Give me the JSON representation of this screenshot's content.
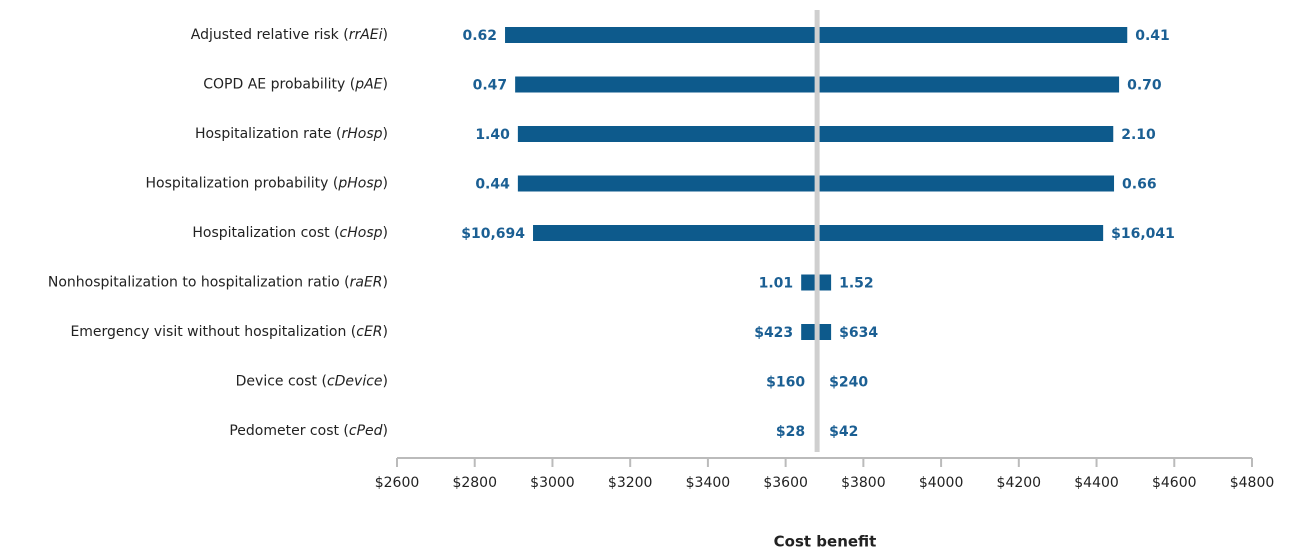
{
  "chart_data": {
    "type": "tornado",
    "x_label": "Cost benefit",
    "categories": [
      "Adjusted relative risk (rrAEi)",
      "COPD AE probability (pAE)",
      "Hospitalization rate (rHosp)",
      "Hospitalization probability (pHosp)",
      "Hospitalization cost (cHosp)",
      "Nonhospitalization to hospitalization ratio (raER)",
      "Emergency visit without hospitalization (cER)",
      "Device cost (cDevice)",
      "Pedometer cost (cPed)"
    ],
    "baseline": 3681,
    "low_values": [
      2878,
      2904,
      2911,
      2911,
      2950,
      3640,
      3640,
      3676,
      3679
    ],
    "high_values": [
      4479,
      4458,
      4443,
      4445,
      4417,
      3717,
      3717,
      3686,
      3683
    ],
    "low_texts": [
      "0.62",
      "0.47",
      "1.40",
      "0.44",
      "$10,694",
      "1.01",
      "$423",
      "$160",
      "$28"
    ],
    "high_texts": [
      "0.41",
      "0.70",
      "2.10",
      "0.66",
      "$16,041",
      "1.52",
      "$634",
      "$240",
      "$42"
    ],
    "color": "#0d5a8c",
    "xlim": [
      2600,
      4800
    ],
    "xticks": [
      {
        "value": 2600,
        "label": "$2600"
      },
      {
        "value": 2800,
        "label": "$2800"
      },
      {
        "value": 3000,
        "label": "$3000"
      },
      {
        "value": 3200,
        "label": "$3200"
      },
      {
        "value": 3400,
        "label": "$3400"
      },
      {
        "value": 3600,
        "label": "$3600"
      },
      {
        "value": 3800,
        "label": "$3800"
      },
      {
        "value": 4000,
        "label": "$4000"
      },
      {
        "value": 4200,
        "label": "$4200"
      },
      {
        "value": 4400,
        "label": "$4400"
      },
      {
        "value": 4600,
        "label": "$4600"
      },
      {
        "value": 4800,
        "label": "$4800"
      }
    ]
  }
}
